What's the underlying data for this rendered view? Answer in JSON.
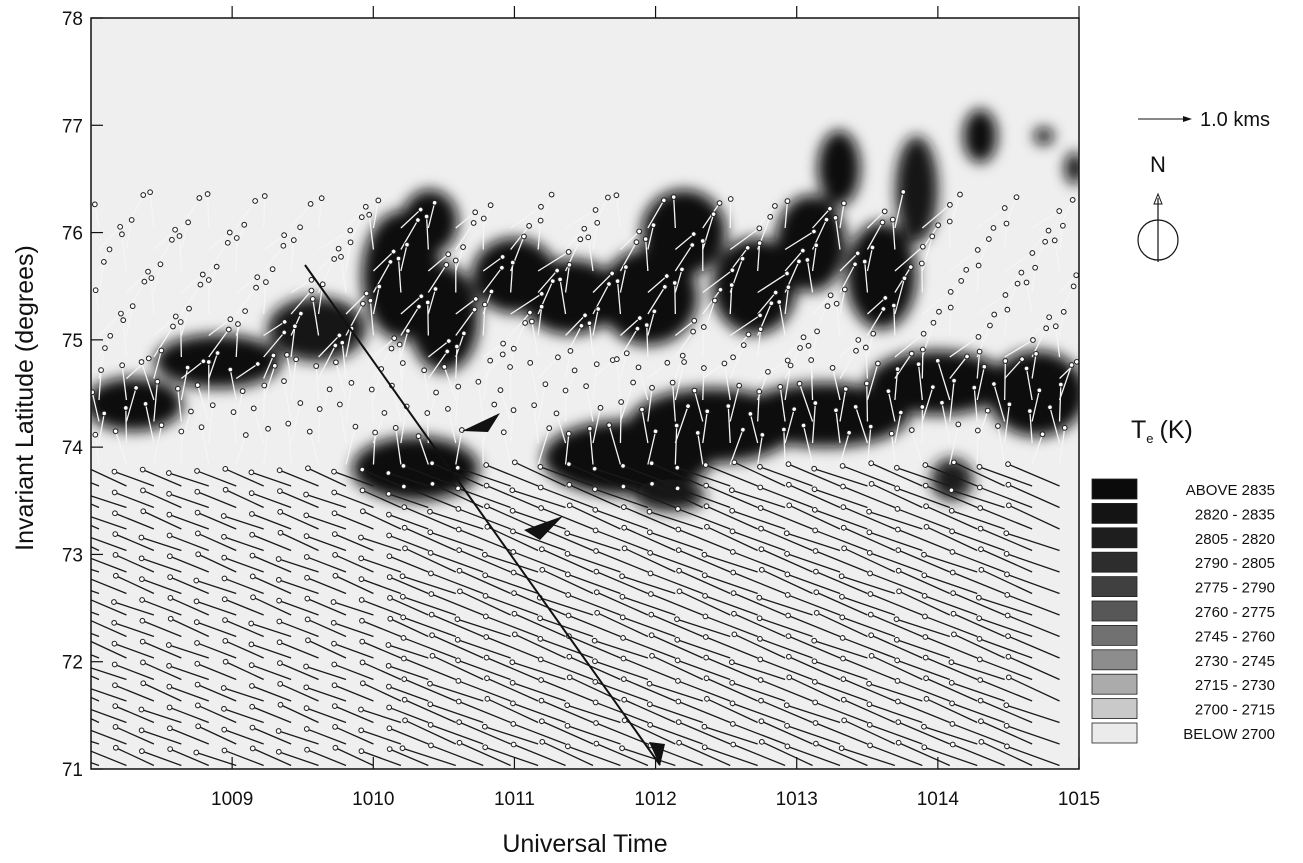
{
  "chart_data": {
    "type": "heatmap",
    "title": "",
    "xlabel": "Universal Time",
    "ylabel": "Invariant Latitude (degrees)",
    "xlim": [
      1008,
      1015
    ],
    "ylim": [
      71,
      78
    ],
    "xticks": [
      {
        "value": 1009,
        "label": "1009"
      },
      {
        "value": 1010,
        "label": "1010"
      },
      {
        "value": 1011,
        "label": "1011"
      },
      {
        "value": 1012,
        "label": "1012"
      },
      {
        "value": 1013,
        "label": "1013"
      },
      {
        "value": 1014,
        "label": "1014"
      },
      {
        "value": 1015,
        "label": "1015"
      }
    ],
    "yticks": [
      {
        "value": 71,
        "label": "71"
      },
      {
        "value": 72,
        "label": "72"
      },
      {
        "value": 73,
        "label": "73"
      },
      {
        "value": 74,
        "label": "74"
      },
      {
        "value": 75,
        "label": "75"
      },
      {
        "value": 76,
        "label": "76"
      },
      {
        "value": 77,
        "label": "77"
      },
      {
        "value": 78,
        "label": "78"
      }
    ],
    "grid": false,
    "colorbar": {
      "title": "T",
      "title_sub": "e",
      "title_unit": "(K)",
      "levels": [
        {
          "label_a": "ABOVE",
          "label_b": "2835",
          "color": "#0b0b0b"
        },
        {
          "label_a": "2820",
          "label_b": "2835",
          "color": "#141414"
        },
        {
          "label_a": "2805",
          "label_b": "2820",
          "color": "#1e1e1e"
        },
        {
          "label_a": "2790",
          "label_b": "2805",
          "color": "#2d2d2d"
        },
        {
          "label_a": "2775",
          "label_b": "2790",
          "color": "#404040"
        },
        {
          "label_a": "2760",
          "label_b": "2775",
          "color": "#575757"
        },
        {
          "label_a": "2745",
          "label_b": "2760",
          "color": "#717171"
        },
        {
          "label_a": "2730",
          "label_b": "2745",
          "color": "#8d8d8d"
        },
        {
          "label_a": "2715",
          "label_b": "2730",
          "color": "#ababab"
        },
        {
          "label_a": "2700",
          "label_b": "2715",
          "color": "#c9c9c9"
        },
        {
          "label_a": "BELOW",
          "label_b": "2700",
          "color": "#ebebeb"
        }
      ]
    },
    "blobs": [
      {
        "x": 1008.3,
        "y": 74.4,
        "rx": 0.35,
        "ry": 0.25,
        "level": 0
      },
      {
        "x": 1008.9,
        "y": 74.8,
        "rx": 0.45,
        "ry": 0.25,
        "level": 0
      },
      {
        "x": 1009.6,
        "y": 75.1,
        "rx": 0.35,
        "ry": 0.3,
        "level": 1
      },
      {
        "x": 1010.2,
        "y": 75.6,
        "rx": 0.28,
        "ry": 0.6,
        "level": 0
      },
      {
        "x": 1010.5,
        "y": 75.2,
        "rx": 0.25,
        "ry": 0.5,
        "level": 0
      },
      {
        "x": 1010.4,
        "y": 76.1,
        "rx": 0.2,
        "ry": 0.3,
        "level": 0
      },
      {
        "x": 1010.3,
        "y": 73.8,
        "rx": 0.45,
        "ry": 0.3,
        "level": 0
      },
      {
        "x": 1011.0,
        "y": 75.6,
        "rx": 0.3,
        "ry": 0.35,
        "level": 0
      },
      {
        "x": 1011.4,
        "y": 75.4,
        "rx": 0.35,
        "ry": 0.35,
        "level": 0
      },
      {
        "x": 1011.95,
        "y": 75.4,
        "rx": 0.35,
        "ry": 0.45,
        "level": 0
      },
      {
        "x": 1012.2,
        "y": 76.0,
        "rx": 0.3,
        "ry": 0.4,
        "level": 0
      },
      {
        "x": 1012.7,
        "y": 75.5,
        "rx": 0.3,
        "ry": 0.45,
        "level": 0
      },
      {
        "x": 1013.1,
        "y": 75.9,
        "rx": 0.25,
        "ry": 0.45,
        "level": 0
      },
      {
        "x": 1013.3,
        "y": 76.6,
        "rx": 0.15,
        "ry": 0.35,
        "level": 0
      },
      {
        "x": 1013.6,
        "y": 75.6,
        "rx": 0.25,
        "ry": 0.5,
        "level": 0
      },
      {
        "x": 1013.85,
        "y": 76.4,
        "rx": 0.15,
        "ry": 0.5,
        "level": 1
      },
      {
        "x": 1014.3,
        "y": 76.9,
        "rx": 0.12,
        "ry": 0.25,
        "level": 0
      },
      {
        "x": 1014.75,
        "y": 76.9,
        "rx": 0.07,
        "ry": 0.08,
        "level": 0
      },
      {
        "x": 1014.97,
        "y": 76.6,
        "rx": 0.07,
        "ry": 0.15,
        "level": 0
      },
      {
        "x": 1011.8,
        "y": 73.9,
        "rx": 0.6,
        "ry": 0.35,
        "level": 0
      },
      {
        "x": 1012.4,
        "y": 74.2,
        "rx": 0.6,
        "ry": 0.35,
        "level": 0
      },
      {
        "x": 1013.2,
        "y": 74.3,
        "rx": 0.6,
        "ry": 0.3,
        "level": 0
      },
      {
        "x": 1014.0,
        "y": 74.6,
        "rx": 0.5,
        "ry": 0.3,
        "level": 0
      },
      {
        "x": 1014.7,
        "y": 74.5,
        "rx": 0.35,
        "ry": 0.4,
        "level": 0
      },
      {
        "x": 1014.1,
        "y": 73.7,
        "rx": 0.15,
        "ry": 0.2,
        "level": 2
      },
      {
        "x": 1012.1,
        "y": 73.55,
        "rx": 0.25,
        "ry": 0.15,
        "level": 1
      }
    ],
    "drift_vectors": {
      "units_label": "1.0  kms",
      "north_label": "N"
    }
  }
}
